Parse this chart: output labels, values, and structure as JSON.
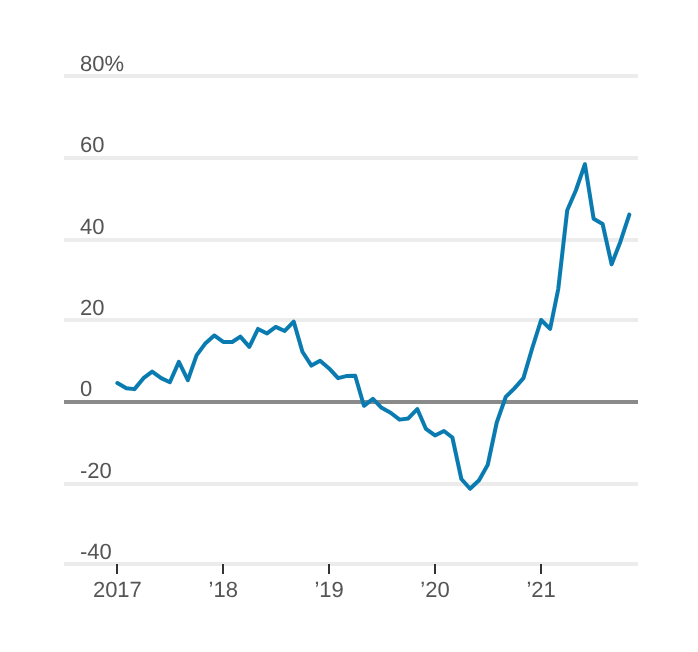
{
  "chart_data": {
    "type": "line",
    "x": [
      "2017-01",
      "2017-02",
      "2017-03",
      "2017-04",
      "2017-05",
      "2017-06",
      "2017-07",
      "2017-08",
      "2017-09",
      "2017-10",
      "2017-11",
      "2017-12",
      "2018-01",
      "2018-02",
      "2018-03",
      "2018-04",
      "2018-05",
      "2018-06",
      "2018-07",
      "2018-08",
      "2018-09",
      "2018-10",
      "2018-11",
      "2018-12",
      "2019-01",
      "2019-02",
      "2019-03",
      "2019-04",
      "2019-05",
      "2019-06",
      "2019-07",
      "2019-08",
      "2019-09",
      "2019-10",
      "2019-11",
      "2019-12",
      "2020-01",
      "2020-02",
      "2020-03",
      "2020-04",
      "2020-05",
      "2020-06",
      "2020-07",
      "2020-08",
      "2020-09",
      "2020-10",
      "2020-11",
      "2020-12",
      "2021-01",
      "2021-02",
      "2021-03",
      "2021-04",
      "2021-05",
      "2021-06",
      "2021-07",
      "2021-08",
      "2021-09",
      "2021-10",
      "2021-11"
    ],
    "series": [
      {
        "color": "#0a7bb0",
        "values": [
          4.5,
          3.2,
          3,
          5.7,
          7.3,
          5.7,
          4.7,
          9.7,
          5.2,
          11.3,
          14.3,
          16.2,
          14.6,
          14.6,
          15.9,
          13.4,
          17.8,
          16.7,
          18.3,
          17.3,
          19.6,
          12.2,
          8.8,
          10,
          8.1,
          5.7,
          6.2,
          6.3,
          -1.1,
          0.6,
          -1.6,
          -2.8,
          -4.5,
          -4.2,
          -1.9,
          -6.8,
          -8.4,
          -7.3,
          -8.9,
          -19.1,
          -21.5,
          -19.4,
          -15.6,
          -5.2,
          1.1,
          3.2,
          5.7,
          13,
          20,
          17.8,
          27.6,
          47,
          51.9,
          58.3,
          44.9,
          43.6,
          33.7,
          39.2,
          45.9
        ]
      }
    ],
    "xlim": [
      "2016-07",
      "2021-12"
    ],
    "xticks": [
      {
        "value": "2017-01",
        "label": "2017"
      },
      {
        "value": "2018-01",
        "label": "’18"
      },
      {
        "value": "2019-01",
        "label": "’19"
      },
      {
        "value": "2020-01",
        "label": "’20"
      },
      {
        "value": "2021-01",
        "label": "’21"
      }
    ],
    "ylim": [
      -40,
      80
    ],
    "yticks": [
      -40,
      -20,
      0,
      20,
      40,
      60,
      {
        "value": 80,
        "label": "80%"
      }
    ],
    "ref_lines": [
      {
        "axis": "y",
        "value": 0,
        "color": "#8a8a8a"
      }
    ],
    "grid": "y",
    "line_style": "solid",
    "marker": "none"
  }
}
